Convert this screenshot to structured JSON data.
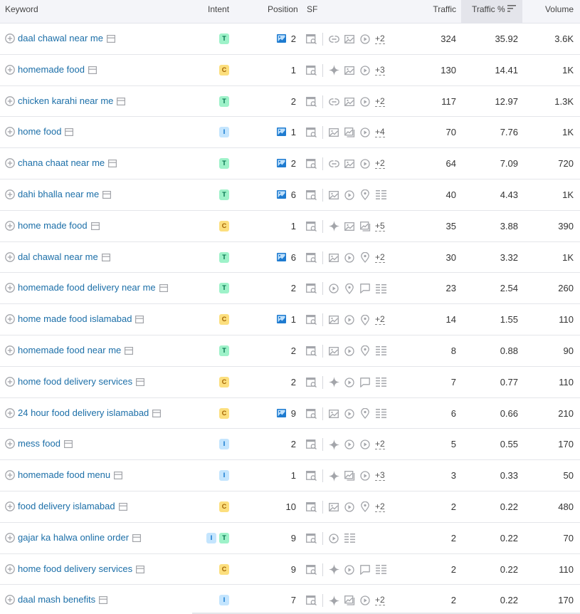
{
  "table": {
    "headers": {
      "keyword": "Keyword",
      "intent": "Intent",
      "position": "Position",
      "sf": "SF",
      "traffic": "Traffic",
      "traffic_pct": "Traffic %",
      "volume": "Volume"
    },
    "sorted_column": "traffic_pct",
    "colors": {
      "keyword_link": "#1c6fa8",
      "intent_T_bg": "#9ef2c9",
      "intent_C_bg": "#fcdf7e",
      "intent_I_bg": "#c4e5fe",
      "serp_image_icon": "#1e7bd0"
    },
    "rows": [
      {
        "keyword": "daal chawal near me",
        "intents": [
          "T"
        ],
        "pos_image": true,
        "position": "2",
        "sf": [
          "link",
          "image",
          "video"
        ],
        "sf_more": "+2",
        "traffic": "324",
        "traffic_pct": "35.92",
        "volume": "3.6K"
      },
      {
        "keyword": "homemade food",
        "intents": [
          "C"
        ],
        "pos_image": false,
        "position": "1",
        "sf": [
          "ai",
          "image",
          "video"
        ],
        "sf_more": "+3",
        "traffic": "130",
        "traffic_pct": "14.41",
        "volume": "1K"
      },
      {
        "keyword": "chicken karahi near me",
        "intents": [
          "T"
        ],
        "pos_image": false,
        "position": "2",
        "sf": [
          "link",
          "image",
          "video"
        ],
        "sf_more": "+2",
        "traffic": "117",
        "traffic_pct": "12.97",
        "volume": "1.3K"
      },
      {
        "keyword": "home food",
        "intents": [
          "I"
        ],
        "pos_image": true,
        "position": "1",
        "sf": [
          "image",
          "images-stack",
          "video"
        ],
        "sf_more": "+4",
        "traffic": "70",
        "traffic_pct": "7.76",
        "volume": "1K"
      },
      {
        "keyword": "chana chaat near me",
        "intents": [
          "T"
        ],
        "pos_image": true,
        "position": "2",
        "sf": [
          "link",
          "image",
          "video"
        ],
        "sf_more": "+2",
        "traffic": "64",
        "traffic_pct": "7.09",
        "volume": "720"
      },
      {
        "keyword": "dahi bhalla near me",
        "intents": [
          "T"
        ],
        "pos_image": true,
        "position": "6",
        "sf": [
          "image",
          "video",
          "location",
          "list"
        ],
        "sf_more": "",
        "traffic": "40",
        "traffic_pct": "4.43",
        "volume": "1K"
      },
      {
        "keyword": "home made food",
        "intents": [
          "C"
        ],
        "pos_image": false,
        "position": "1",
        "sf": [
          "ai",
          "image",
          "images-stack"
        ],
        "sf_more": "+5",
        "traffic": "35",
        "traffic_pct": "3.88",
        "volume": "390"
      },
      {
        "keyword": "dal chawal near me",
        "intents": [
          "T"
        ],
        "pos_image": true,
        "position": "6",
        "sf": [
          "image",
          "video",
          "location"
        ],
        "sf_more": "+2",
        "traffic": "30",
        "traffic_pct": "3.32",
        "volume": "1K"
      },
      {
        "keyword": "homemade food delivery near me",
        "intents": [
          "T"
        ],
        "pos_image": false,
        "position": "2",
        "sf": [
          "video",
          "location",
          "review",
          "list"
        ],
        "sf_more": "",
        "traffic": "23",
        "traffic_pct": "2.54",
        "volume": "260"
      },
      {
        "keyword": "home made food islamabad",
        "intents": [
          "C"
        ],
        "pos_image": true,
        "position": "1",
        "sf": [
          "image",
          "video",
          "location"
        ],
        "sf_more": "+2",
        "traffic": "14",
        "traffic_pct": "1.55",
        "volume": "110"
      },
      {
        "keyword": "homemade food near me",
        "intents": [
          "T"
        ],
        "pos_image": false,
        "position": "2",
        "sf": [
          "image",
          "video",
          "location",
          "list"
        ],
        "sf_more": "",
        "traffic": "8",
        "traffic_pct": "0.88",
        "volume": "90"
      },
      {
        "keyword": "home food delivery services",
        "intents": [
          "C"
        ],
        "pos_image": false,
        "position": "2",
        "sf": [
          "ai",
          "video",
          "review",
          "list"
        ],
        "sf_more": "",
        "traffic": "7",
        "traffic_pct": "0.77",
        "volume": "110"
      },
      {
        "keyword": "24 hour food delivery islamabad",
        "intents": [
          "C"
        ],
        "pos_image": true,
        "position": "9",
        "sf": [
          "image",
          "video",
          "location",
          "list"
        ],
        "sf_more": "",
        "traffic": "6",
        "traffic_pct": "0.66",
        "volume": "210"
      },
      {
        "keyword": "mess food",
        "intents": [
          "I"
        ],
        "pos_image": false,
        "position": "2",
        "sf": [
          "ai",
          "video",
          "video"
        ],
        "sf_more": "+2",
        "traffic": "5",
        "traffic_pct": "0.55",
        "volume": "170"
      },
      {
        "keyword": "homemade food menu",
        "intents": [
          "I"
        ],
        "pos_image": false,
        "position": "1",
        "sf": [
          "ai",
          "images-stack",
          "video"
        ],
        "sf_more": "+3",
        "traffic": "3",
        "traffic_pct": "0.33",
        "volume": "50"
      },
      {
        "keyword": "food delivery islamabad",
        "intents": [
          "C"
        ],
        "pos_image": false,
        "position": "10",
        "sf": [
          "image",
          "video",
          "location"
        ],
        "sf_more": "+2",
        "traffic": "2",
        "traffic_pct": "0.22",
        "volume": "480"
      },
      {
        "keyword": "gajar ka halwa online order",
        "intents": [
          "I",
          "T"
        ],
        "pos_image": false,
        "position": "9",
        "sf": [
          "video",
          "list"
        ],
        "sf_more": "",
        "traffic": "2",
        "traffic_pct": "0.22",
        "volume": "70"
      },
      {
        "keyword": "home food delivery services",
        "intents": [
          "C"
        ],
        "pos_image": false,
        "position": "9",
        "sf": [
          "ai",
          "video",
          "review",
          "list"
        ],
        "sf_more": "",
        "traffic": "2",
        "traffic_pct": "0.22",
        "volume": "110"
      },
      {
        "keyword": "daal mash benefits",
        "intents": [
          "I"
        ],
        "pos_image": false,
        "position": "7",
        "sf": [
          "ai",
          "images-stack",
          "video"
        ],
        "sf_more": "+2",
        "traffic": "2",
        "traffic_pct": "0.22",
        "volume": "170"
      }
    ]
  }
}
